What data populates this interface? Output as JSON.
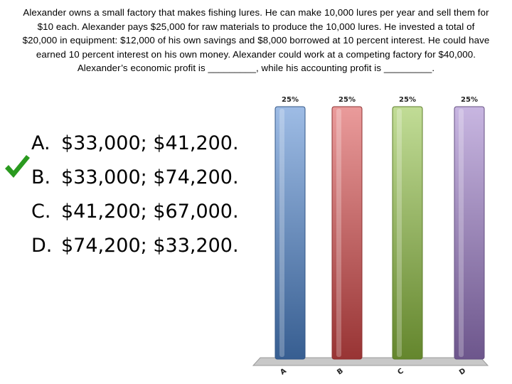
{
  "question": {
    "text": "Alexander owns a small factory that makes fishing lures. He can make 10,000 lures per year and sell them for $10 each. Alexander pays $25,000 for raw materials to produce the 10,000 lures. He invested a total of $20,000 in equipment: $12,000 of his own savings and $8,000 borrowed at 10 percent interest. He could have earned 10 percent interest on his own money. Alexander could work at a competing factory for $40,000. Alexander’s economic profit is _________, while his accounting profit is _________."
  },
  "answers": [
    {
      "letter": "A.",
      "text": "$33,000; $41,200."
    },
    {
      "letter": "B.",
      "text": "$33,000; $74,200.",
      "correct": true
    },
    {
      "letter": "C.",
      "text": "$41,200; $67,000."
    },
    {
      "letter": "D.",
      "text": "$74,200; $33,200."
    }
  ],
  "icons": {
    "correct_marker": "checkmark-icon"
  },
  "colors": {
    "checkmark": "#2a9a1f"
  },
  "chart_data": {
    "type": "bar",
    "categories": [
      "A",
      "B",
      "C",
      "D"
    ],
    "values": [
      25,
      25,
      25,
      25
    ],
    "data_labels": [
      "25%",
      "25%",
      "25%",
      "25%"
    ],
    "ylim": [
      0,
      25
    ],
    "colors": [
      "#4f86cf",
      "#d94a4a",
      "#8fc040",
      "#9b7bc8"
    ]
  }
}
